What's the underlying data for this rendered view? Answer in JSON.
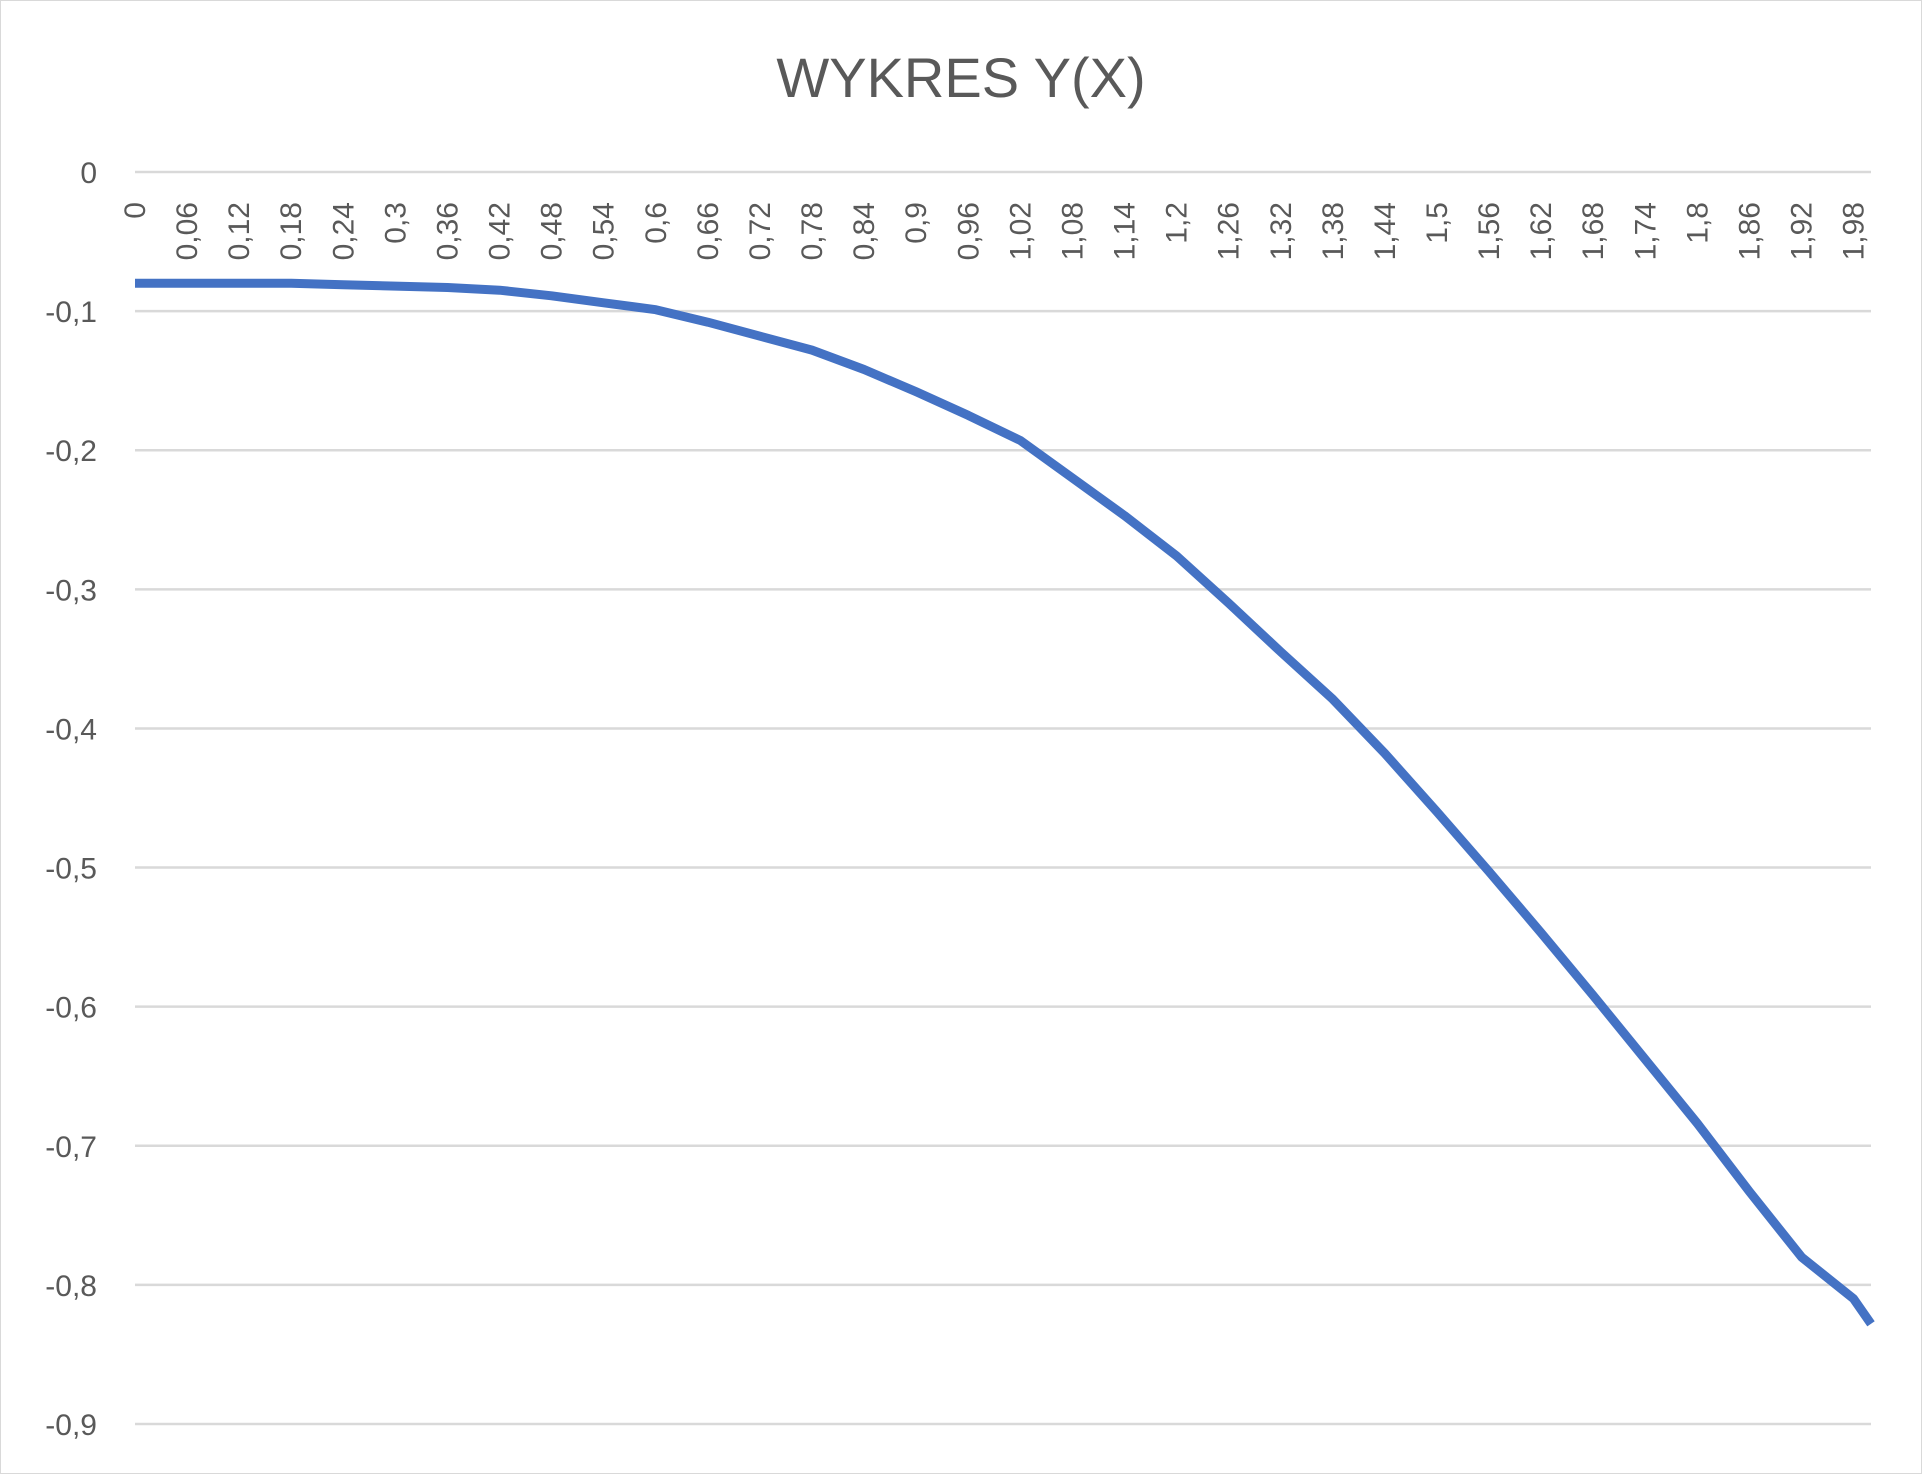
{
  "chart_data": {
    "type": "line",
    "title": "WYKRES Y(X)",
    "xlabel": "",
    "ylabel": "",
    "x_tick_labels": [
      "0",
      "0,06",
      "0,12",
      "0,18",
      "0,24",
      "0,3",
      "0,36",
      "0,42",
      "0,48",
      "0,54",
      "0,6",
      "0,66",
      "0,72",
      "0,78",
      "0,84",
      "0,9",
      "0,96",
      "1,02",
      "1,08",
      "1,14",
      "1,2",
      "1,26",
      "1,32",
      "1,38",
      "1,44",
      "1,5",
      "1,56",
      "1,62",
      "1,68",
      "1,74",
      "1,8",
      "1,86",
      "1,92",
      "1,98"
    ],
    "y_tick_labels": [
      "0",
      "-0,1",
      "-0,2",
      "-0,3",
      "-0,4",
      "-0,5",
      "-0,6",
      "-0,7",
      "-0,8",
      "-0,9"
    ],
    "ylim": [
      -0.9,
      0
    ],
    "xlim": [
      0,
      2.0
    ],
    "grid": true,
    "legend": "none",
    "series": [
      {
        "color": "#4472c4",
        "x": [
          0,
          0.06,
          0.12,
          0.18,
          0.24,
          0.3,
          0.36,
          0.42,
          0.48,
          0.54,
          0.6,
          0.66,
          0.72,
          0.78,
          0.84,
          0.9,
          0.96,
          1.02,
          1.08,
          1.14,
          1.2,
          1.26,
          1.32,
          1.38,
          1.44,
          1.5,
          1.56,
          1.62,
          1.68,
          1.74,
          1.8,
          1.86,
          1.92,
          1.98,
          2.0
        ],
        "y": [
          -0.08,
          -0.08,
          -0.08,
          -0.08,
          -0.081,
          -0.082,
          -0.083,
          -0.085,
          -0.089,
          -0.094,
          -0.099,
          -0.108,
          -0.118,
          -0.128,
          -0.142,
          -0.158,
          -0.175,
          -0.193,
          -0.22,
          -0.247,
          -0.276,
          -0.31,
          -0.345,
          -0.379,
          -0.418,
          -0.46,
          -0.503,
          -0.547,
          -0.592,
          -0.638,
          -0.684,
          -0.733,
          -0.78,
          -0.81,
          -0.828
        ]
      }
    ]
  }
}
